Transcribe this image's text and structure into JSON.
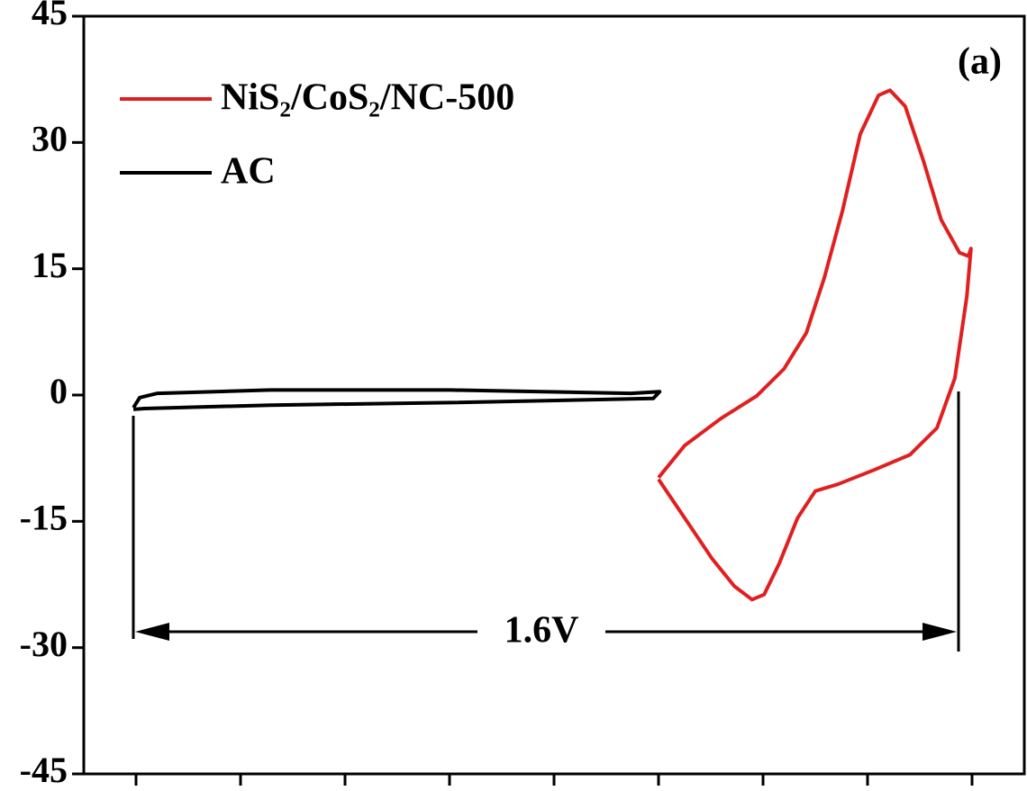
{
  "chart_data": {
    "type": "line",
    "panel_label": "(a)",
    "annotation": "1.6V",
    "xlim": [
      -1.1,
      0.7
    ],
    "xticks": [
      -1.0,
      -0.8,
      -0.6,
      -0.4,
      -0.2,
      0,
      0.2,
      0.4,
      0.6
    ],
    "ylim": [
      -45,
      45
    ],
    "yticks": [
      -45,
      -30,
      -15,
      0,
      15,
      30,
      45
    ],
    "legend": "upper left",
    "series": [
      {
        "name": "NiS₂/CoS₂/NC-500",
        "color": "#e02020",
        "x": [
          0.0,
          0.05,
          0.119,
          0.188,
          0.24,
          0.283,
          0.317,
          0.352,
          0.386,
          0.421,
          0.443,
          0.472,
          0.507,
          0.541,
          0.576,
          0.593,
          0.598,
          0.59,
          0.567,
          0.533,
          0.481,
          0.412,
          0.343,
          0.3,
          0.266,
          0.231,
          0.202,
          0.179,
          0.145,
          0.102,
          0.05,
          0.0
        ],
        "values": [
          -9.8,
          -6,
          -2.8,
          -0.1,
          3.1,
          7.4,
          13.9,
          21.9,
          31,
          35.6,
          36.2,
          34.3,
          27.8,
          20.8,
          16.9,
          16.5,
          17.4,
          11.7,
          2,
          -3.9,
          -7.1,
          -8.9,
          -10.6,
          -11.4,
          -14.6,
          -20,
          -23.7,
          -24.3,
          -22.7,
          -19.4,
          -14.6,
          -10
        ]
      },
      {
        "name": "AC",
        "color": "#000000",
        "x": [
          -1.005,
          -0.993,
          -0.959,
          -0.743,
          -0.398,
          -0.053,
          0.002,
          -0.01,
          -0.398,
          -0.743,
          -0.984,
          -1.005
        ],
        "values": [
          -1.5,
          -0.3,
          0.2,
          0.6,
          0.6,
          0.2,
          0.4,
          -0.4,
          -0.9,
          -1.2,
          -1.6,
          -1.7
        ]
      }
    ]
  }
}
